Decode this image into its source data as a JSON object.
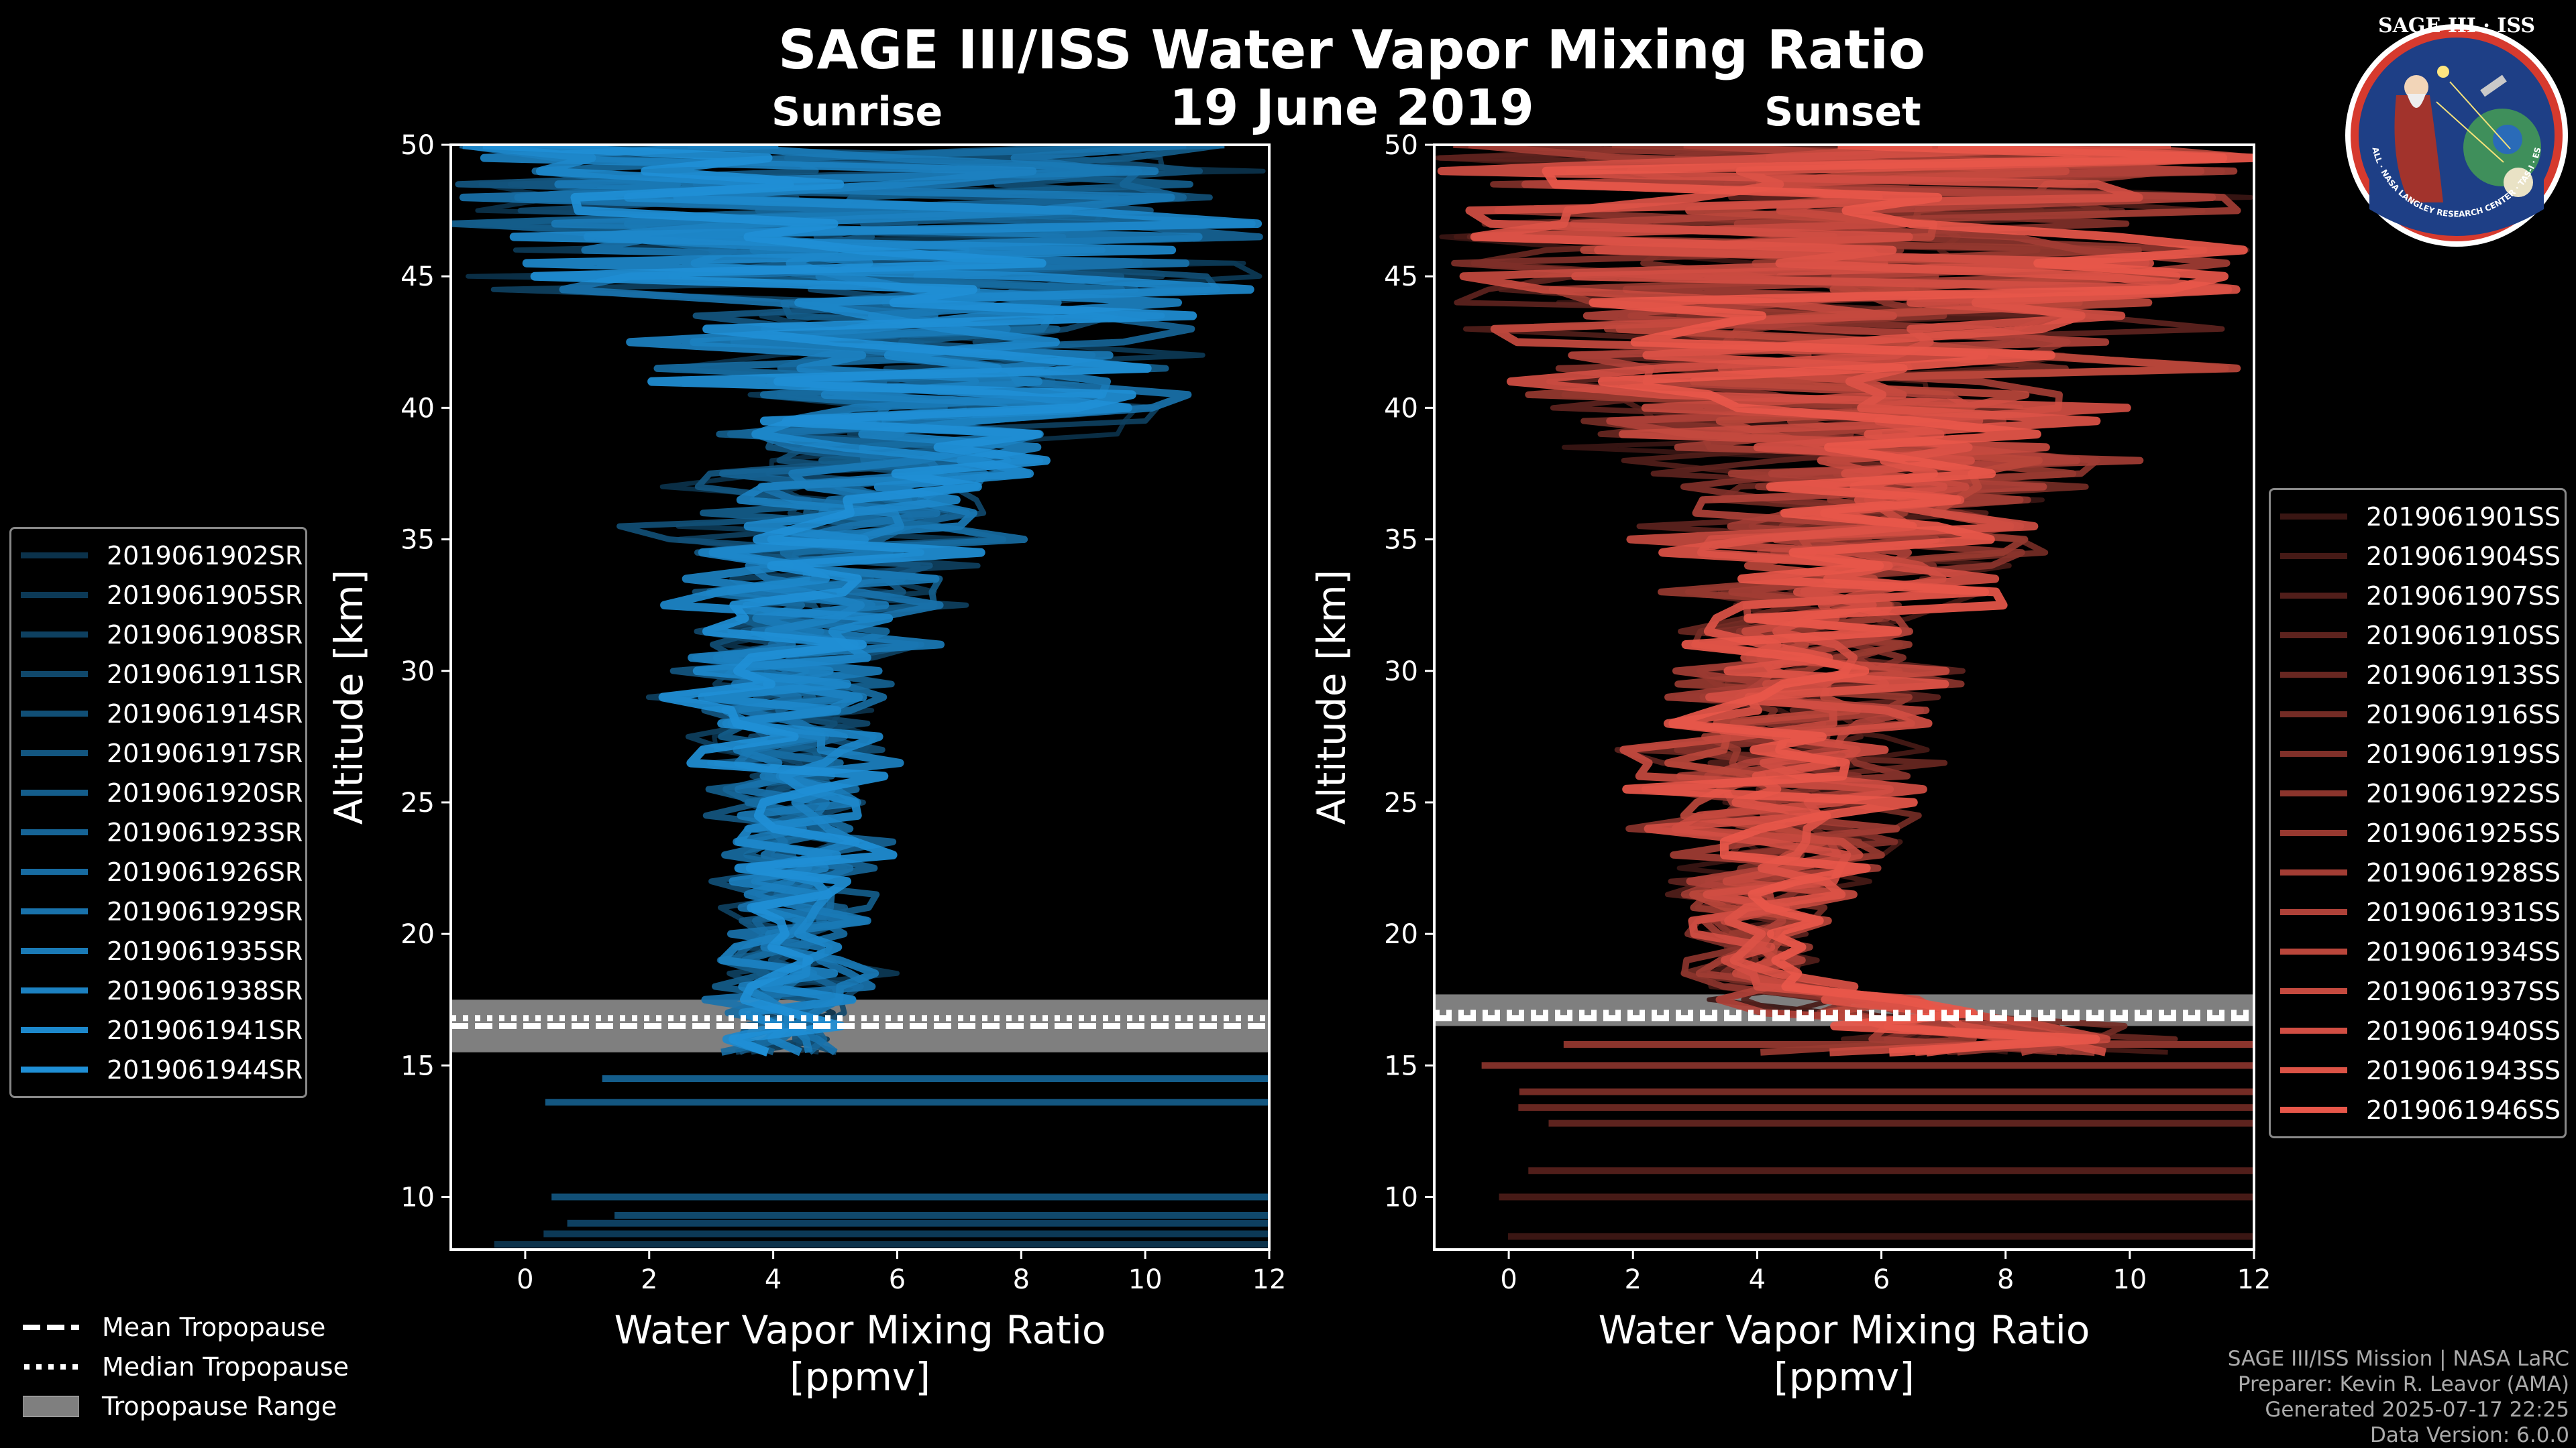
{
  "title": "SAGE III/ISS Water Vapor Mixing Ratio",
  "date": "19 June 2019",
  "colors": {
    "sunrise": "#1f8fd6",
    "sunset": "#e8574a",
    "tropopause_band": "#7f7f7f",
    "background": "#000000"
  },
  "badge": {
    "text": "SAGE III · ISS",
    "ring_text": "BALL · NASA LANGLEY RESEARCH CENTER · TAS-I · ESA"
  },
  "tropopause_legend": [
    {
      "label": "Mean Tropopause",
      "style": "dashed"
    },
    {
      "label": "Median Tropopause",
      "style": "dotted"
    },
    {
      "label": "Tropopause Range",
      "style": "band"
    }
  ],
  "credits": [
    "SAGE III/ISS Mission | NASA LaRC",
    "Preparer: Kevin R. Leavor (AMA)",
    "Generated 2025-07-17 22:25",
    "Data Version: 6.0.0"
  ],
  "chart_data": [
    {
      "panel": "Sunrise",
      "type": "line",
      "xlabel": "Water Vapor Mixing Ratio [ppmv]",
      "ylabel": "Altitude [km]",
      "xlim": [
        -1.2,
        12
      ],
      "ylim": [
        8,
        50
      ],
      "xticks": [
        0,
        2,
        4,
        6,
        8,
        10,
        12
      ],
      "yticks": [
        10,
        15,
        20,
        25,
        30,
        35,
        40,
        45,
        50
      ],
      "tropopause": {
        "mean": 16.5,
        "median": 16.8,
        "min": 15.5,
        "max": 17.5
      },
      "series": [
        {
          "name": "2019061902SR"
        },
        {
          "name": "2019061905SR"
        },
        {
          "name": "2019061908SR"
        },
        {
          "name": "2019061911SR"
        },
        {
          "name": "2019061914SR"
        },
        {
          "name": "2019061917SR"
        },
        {
          "name": "2019061920SR"
        },
        {
          "name": "2019061923SR"
        },
        {
          "name": "2019061926SR"
        },
        {
          "name": "2019061929SR"
        },
        {
          "name": "2019061935SR"
        },
        {
          "name": "2019061938SR"
        },
        {
          "name": "2019061941SR"
        },
        {
          "name": "2019061944SR"
        }
      ],
      "profile_envelope": [
        {
          "alt": 16,
          "min": 2.7,
          "max": 5.5
        },
        {
          "alt": 18,
          "min": 2.9,
          "max": 6.2
        },
        {
          "alt": 20,
          "min": 3.0,
          "max": 5.6
        },
        {
          "alt": 23,
          "min": 2.8,
          "max": 6.2
        },
        {
          "alt": 26,
          "min": 2.7,
          "max": 6.0
        },
        {
          "alt": 29,
          "min": 1.3,
          "max": 6.8
        },
        {
          "alt": 32,
          "min": 2.2,
          "max": 7.2
        },
        {
          "alt": 35,
          "min": 1.0,
          "max": 8.8
        },
        {
          "alt": 38,
          "min": 1.9,
          "max": 9.6
        },
        {
          "alt": 40,
          "min": 1.0,
          "max": 11.5
        },
        {
          "alt": 42,
          "min": 1.0,
          "max": 12.0
        },
        {
          "alt": 44,
          "min": 1.0,
          "max": 12.0
        },
        {
          "alt": 46,
          "min": 0.0,
          "max": 12.0
        },
        {
          "alt": 48,
          "min": -1.2,
          "max": 12.0
        },
        {
          "alt": 50,
          "min": -1.2,
          "max": 12.0
        }
      ],
      "low_altitude_traces": [
        8.2,
        8.6,
        9.0,
        9.3,
        10.0,
        13.6,
        14.5
      ]
    },
    {
      "panel": "Sunset",
      "type": "line",
      "xlabel": "Water Vapor Mixing Ratio [ppmv]",
      "ylabel": "Altitude [km]",
      "xlim": [
        -1.2,
        12
      ],
      "ylim": [
        8,
        50
      ],
      "xticks": [
        0,
        2,
        4,
        6,
        8,
        10,
        12
      ],
      "yticks": [
        10,
        15,
        20,
        25,
        30,
        35,
        40,
        45,
        50
      ],
      "tropopause": {
        "mean": 16.8,
        "median": 17.0,
        "min": 16.5,
        "max": 17.7
      },
      "series": [
        {
          "name": "2019061901SS"
        },
        {
          "name": "2019061904SS"
        },
        {
          "name": "2019061907SS"
        },
        {
          "name": "2019061910SS"
        },
        {
          "name": "2019061913SS"
        },
        {
          "name": "2019061916SS"
        },
        {
          "name": "2019061919SS"
        },
        {
          "name": "2019061922SS"
        },
        {
          "name": "2019061925SS"
        },
        {
          "name": "2019061928SS"
        },
        {
          "name": "2019061931SS"
        },
        {
          "name": "2019061934SS"
        },
        {
          "name": "2019061937SS"
        },
        {
          "name": "2019061940SS"
        },
        {
          "name": "2019061943SS"
        },
        {
          "name": "2019061946SS"
        }
      ],
      "profile_envelope": [
        {
          "alt": 16,
          "min": 3.2,
          "max": 12.0
        },
        {
          "alt": 18,
          "min": 2.6,
          "max": 5.6
        },
        {
          "alt": 20,
          "min": 2.4,
          "max": 5.2
        },
        {
          "alt": 23,
          "min": 2.2,
          "max": 6.8
        },
        {
          "alt": 26,
          "min": 1.2,
          "max": 7.6
        },
        {
          "alt": 29,
          "min": 1.8,
          "max": 7.6
        },
        {
          "alt": 32,
          "min": 2.0,
          "max": 7.6
        },
        {
          "alt": 34,
          "min": 2.0,
          "max": 9.4
        },
        {
          "alt": 37,
          "min": 1.2,
          "max": 10.5
        },
        {
          "alt": 40,
          "min": -1.2,
          "max": 12.0
        },
        {
          "alt": 43,
          "min": -1.2,
          "max": 12.0
        },
        {
          "alt": 46,
          "min": -1.2,
          "max": 12.0
        },
        {
          "alt": 50,
          "min": -1.2,
          "max": 12.0
        }
      ],
      "low_altitude_traces": [
        8.5,
        10.0,
        11.0,
        12.8,
        13.4,
        14.0,
        15.0,
        15.8
      ]
    }
  ]
}
